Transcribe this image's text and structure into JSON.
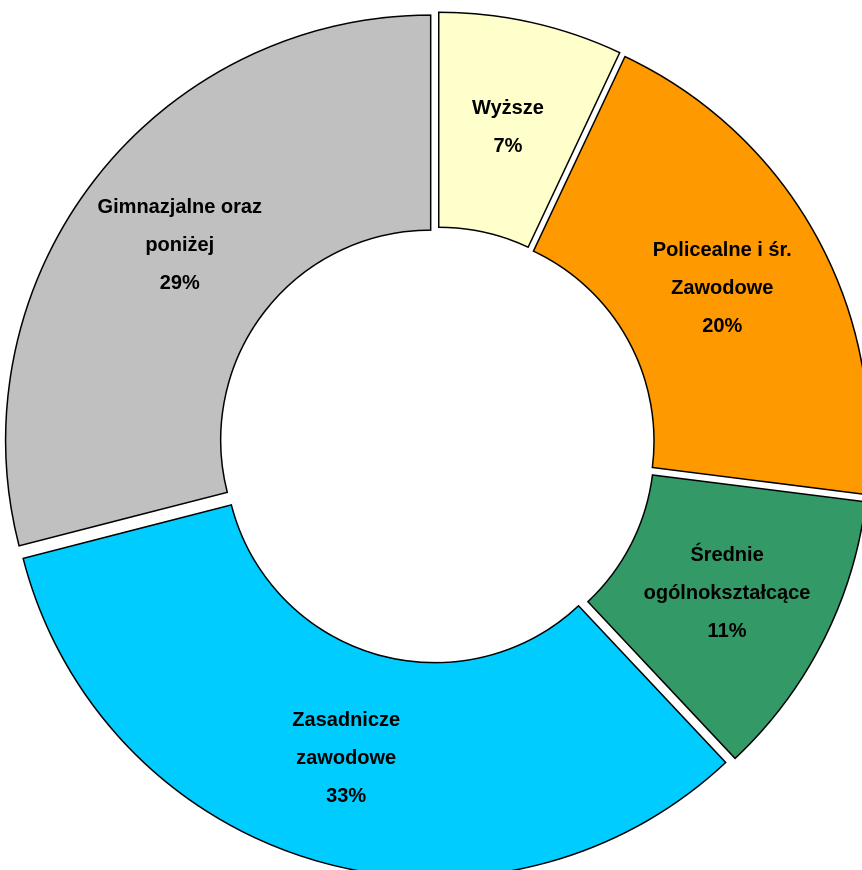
{
  "chart_data": {
    "type": "donut",
    "categories": [
      "Wyższe",
      "Policealne i śr. Zawodowe",
      "Średnie ogólnokształcące",
      "Zasadnicze zawodowe",
      "Gimnazjalne oraz poniżej"
    ],
    "values": [
      7,
      20,
      11,
      33,
      29
    ],
    "value_labels": [
      "7%",
      "20%",
      "11%",
      "33%",
      "29%"
    ],
    "colors": [
      "#ffffcc",
      "#ff9900",
      "#339966",
      "#00ccff",
      "#c0c0c0"
    ]
  }
}
